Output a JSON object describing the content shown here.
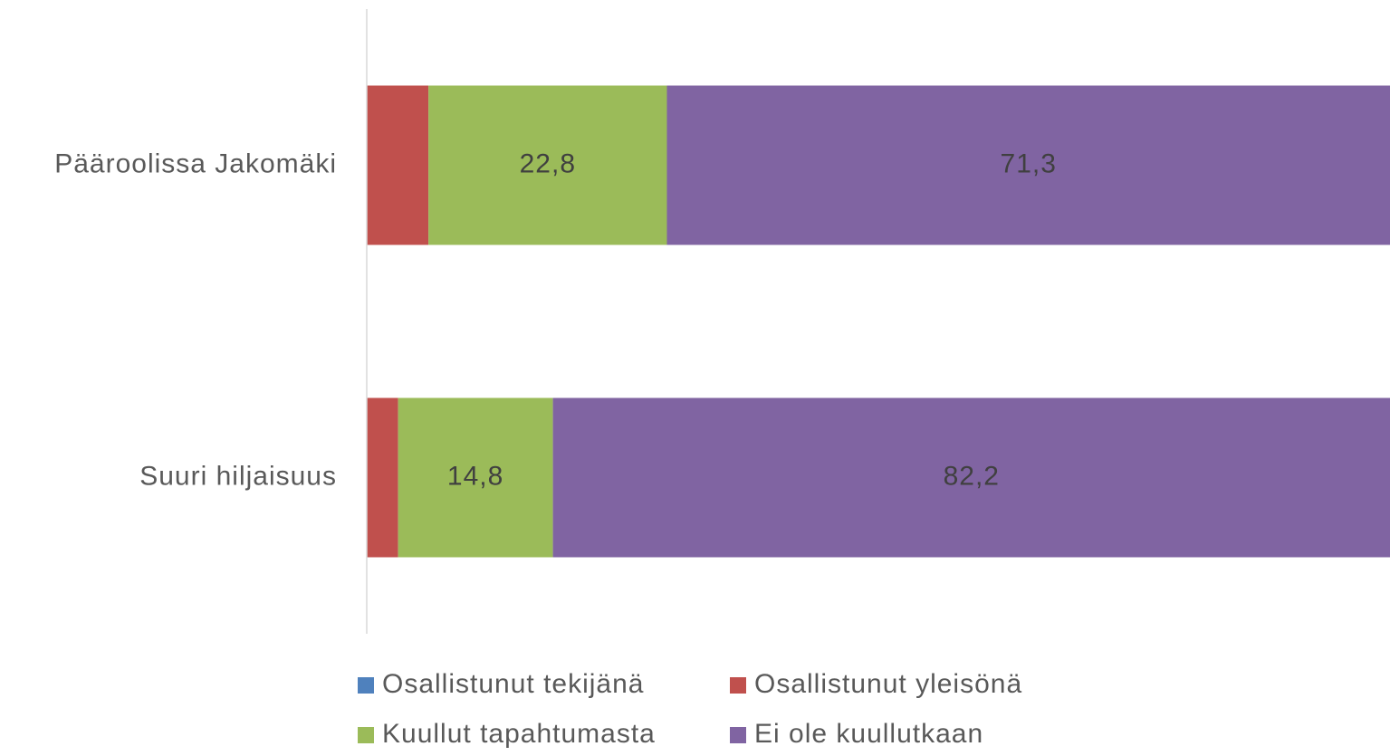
{
  "chart_data": {
    "type": "stacked-bar-horizontal",
    "categories": [
      "Pääroolissa Jakomäki",
      "Suuri hiljaisuus"
    ],
    "series": [
      {
        "name": "Osallistunut tekijänä",
        "color": "#4f81bd",
        "values": [
          0,
          0
        ]
      },
      {
        "name": "Osallistunut yleisönä",
        "color": "#c0504d",
        "values": [
          5.9,
          3.0
        ]
      },
      {
        "name": "Kuullut tapahtumasta",
        "color": "#9bbb59",
        "values": [
          22.8,
          14.8
        ],
        "value_labels": [
          "22,8",
          "14,8"
        ]
      },
      {
        "name": "Ei ole kuullutkaan",
        "color": "#8064a2",
        "values": [
          71.3,
          82.2
        ],
        "value_labels": [
          "71,3",
          "82,2"
        ]
      }
    ],
    "xlim": [
      0,
      100
    ],
    "legend": "bottom"
  }
}
